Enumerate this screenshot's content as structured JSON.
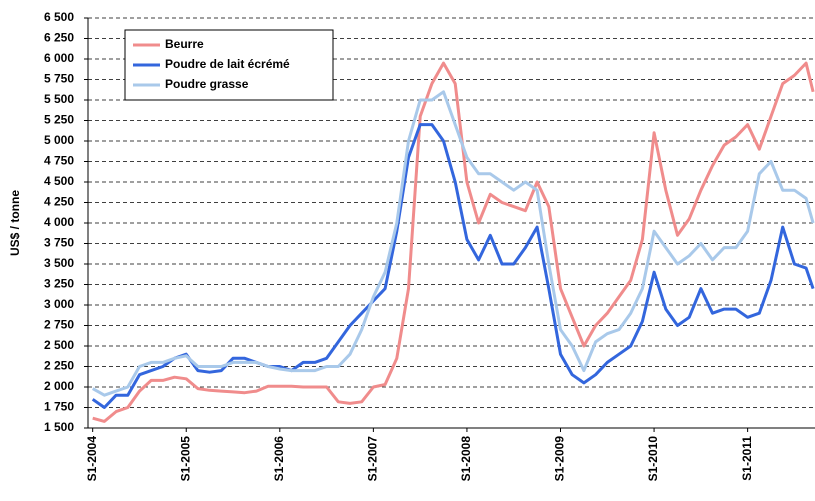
{
  "chart_data": {
    "type": "line",
    "y_label": "US$ / tonne",
    "x": [
      2004,
      2004.125,
      2004.25,
      2004.375,
      2004.5,
      2004.625,
      2004.75,
      2004.875,
      2005,
      2005.125,
      2005.25,
      2005.375,
      2005.5,
      2005.625,
      2005.75,
      2005.875,
      2006,
      2006.125,
      2006.25,
      2006.375,
      2006.5,
      2006.625,
      2006.75,
      2006.875,
      2007,
      2007.125,
      2007.25,
      2007.375,
      2007.5,
      2007.625,
      2007.75,
      2007.875,
      2008,
      2008.125,
      2008.25,
      2008.375,
      2008.5,
      2008.625,
      2008.75,
      2008.875,
      2009,
      2009.125,
      2009.25,
      2009.375,
      2009.5,
      2009.625,
      2009.75,
      2009.875,
      2010,
      2010.125,
      2010.25,
      2010.375,
      2010.5,
      2010.625,
      2010.75,
      2010.875,
      2011,
      2011.125,
      2011.25,
      2011.375,
      2011.5,
      2011.625,
      2011.7
    ],
    "series": [
      {
        "name": "Beurre",
        "color": "#f08c8c",
        "values": [
          1620,
          1580,
          1700,
          1750,
          1950,
          2080,
          2080,
          2120,
          2100,
          1980,
          1960,
          1950,
          1940,
          1930,
          1950,
          2010,
          2010,
          2010,
          2000,
          2000,
          2000,
          1820,
          1800,
          1820,
          2000,
          2030,
          2350,
          3200,
          5300,
          5700,
          5950,
          5700,
          4500,
          4000,
          4350,
          4250,
          4200,
          4150,
          4500,
          4200,
          3200,
          2850,
          2500,
          2750,
          2900,
          3100,
          3300,
          3800,
          5100,
          4400,
          3850,
          4050,
          4400,
          4700,
          4950,
          5050,
          5200,
          4900,
          5300,
          5700,
          5800,
          5950,
          5600
        ]
      },
      {
        "name": "Poudre de lait écrémé",
        "color": "#3366dd",
        "values": [
          1850,
          1750,
          1900,
          1900,
          2150,
          2200,
          2250,
          2350,
          2400,
          2200,
          2180,
          2200,
          2350,
          2350,
          2300,
          2250,
          2250,
          2200,
          2300,
          2300,
          2350,
          2550,
          2750,
          2900,
          3050,
          3200,
          3900,
          4800,
          5200,
          5200,
          5000,
          4500,
          3800,
          3550,
          3850,
          3500,
          3500,
          3700,
          3950,
          3200,
          2400,
          2150,
          2050,
          2150,
          2300,
          2400,
          2500,
          2800,
          3400,
          2950,
          2750,
          2850,
          3200,
          2900,
          2950,
          2950,
          2850,
          2900,
          3300,
          3950,
          3500,
          3450,
          3200
        ]
      },
      {
        "name": "Poudre grasse",
        "color": "#a9c9ea",
        "values": [
          1980,
          1900,
          1950,
          2000,
          2250,
          2300,
          2300,
          2350,
          2380,
          2250,
          2250,
          2250,
          2300,
          2300,
          2300,
          2250,
          2220,
          2200,
          2200,
          2200,
          2250,
          2250,
          2400,
          2700,
          3100,
          3400,
          4000,
          5000,
          5500,
          5500,
          5600,
          5200,
          4800,
          4600,
          4600,
          4500,
          4400,
          4500,
          4400,
          3500,
          2700,
          2500,
          2200,
          2550,
          2650,
          2700,
          2900,
          3200,
          3900,
          3700,
          3500,
          3600,
          3750,
          3550,
          3700,
          3700,
          3900,
          4600,
          4750,
          4400,
          4400,
          4300,
          4000
        ]
      }
    ],
    "xlim": [
      2003.95,
      2011.72
    ],
    "xticks": [
      {
        "value": 2004,
        "label": "S1-2004"
      },
      {
        "value": 2005,
        "label": "S1-2005"
      },
      {
        "value": 2006,
        "label": "S1-2006"
      },
      {
        "value": 2007,
        "label": "S1-2007"
      },
      {
        "value": 2008,
        "label": "S1-2008"
      },
      {
        "value": 2009,
        "label": "S1-2009"
      },
      {
        "value": 2010,
        "label": "S1-2010"
      },
      {
        "value": 2011,
        "label": "S1-2011"
      }
    ],
    "ylim": [
      1500,
      6500
    ],
    "yticks": [
      {
        "value": 1500,
        "label": "1 500"
      },
      {
        "value": 1750,
        "label": "1 750"
      },
      {
        "value": 2000,
        "label": "2 000"
      },
      {
        "value": 2250,
        "label": "2 250"
      },
      {
        "value": 2500,
        "label": "2 500"
      },
      {
        "value": 2750,
        "label": "2 750"
      },
      {
        "value": 3000,
        "label": "3 000"
      },
      {
        "value": 3250,
        "label": "3 250"
      },
      {
        "value": 3500,
        "label": "3 500"
      },
      {
        "value": 3750,
        "label": "3 750"
      },
      {
        "value": 4000,
        "label": "4 000"
      },
      {
        "value": 4250,
        "label": "4 250"
      },
      {
        "value": 4500,
        "label": "4 500"
      },
      {
        "value": 4750,
        "label": "4 750"
      },
      {
        "value": 5000,
        "label": "5 000"
      },
      {
        "value": 5250,
        "label": "5 250"
      },
      {
        "value": 5500,
        "label": "5 500"
      },
      {
        "value": 5750,
        "label": "5 750"
      },
      {
        "value": 6000,
        "label": "6 000"
      },
      {
        "value": 6250,
        "label": "6 250"
      },
      {
        "value": 6500,
        "label": "6 500"
      }
    ],
    "grid": true,
    "legend": "upper left"
  }
}
